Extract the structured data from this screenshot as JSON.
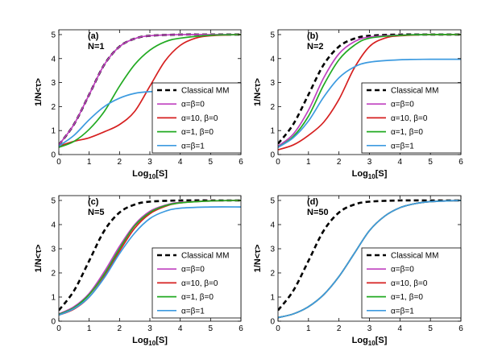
{
  "chart_data": [
    {
      "type": "line",
      "panel_label": "(a)",
      "n_label": "N=1",
      "xlabel_main": "Log",
      "xlabel_sub": "10",
      "xlabel_tail": "[S]",
      "ylabel": "1/N<τ>",
      "xlim": [
        0,
        6
      ],
      "ylim": [
        0,
        5.2
      ],
      "xticks": [
        "0",
        "1",
        "2",
        "3",
        "4",
        "5",
        "6"
      ],
      "yticks": [
        "0",
        "1",
        "2",
        "3",
        "4",
        "5"
      ],
      "series": [
        {
          "name": "Classical MM",
          "color": "#000000",
          "dash": true,
          "x": [
            0,
            0.5,
            1,
            1.5,
            2,
            2.5,
            3,
            4,
            5,
            6
          ],
          "y": [
            0.4,
            1.26,
            2.5,
            3.75,
            4.5,
            4.83,
            4.95,
            5.0,
            5.0,
            5.0
          ]
        },
        {
          "name": "α=β=0",
          "color": "#bf40bf",
          "dash": false,
          "x": [
            0,
            0.5,
            1,
            1.5,
            2,
            2.5,
            3,
            4,
            5,
            6
          ],
          "y": [
            0.4,
            1.26,
            2.5,
            3.75,
            4.5,
            4.83,
            4.95,
            5.0,
            5.0,
            5.0
          ]
        },
        {
          "name": "α=10, β=0",
          "color": "#d62020",
          "dash": false,
          "x": [
            0,
            0.5,
            1,
            1.5,
            2,
            2.5,
            3,
            3.5,
            4,
            4.5,
            5,
            6
          ],
          "y": [
            0.35,
            0.55,
            0.7,
            0.95,
            1.25,
            1.8,
            2.85,
            3.9,
            4.55,
            4.85,
            4.95,
            5.0
          ]
        },
        {
          "name": "α=1, β=0",
          "color": "#22aa22",
          "dash": false,
          "x": [
            0,
            0.5,
            1,
            1.5,
            2,
            2.5,
            3,
            3.5,
            4,
            5,
            6
          ],
          "y": [
            0.3,
            0.55,
            1.05,
            1.8,
            2.85,
            3.75,
            4.35,
            4.7,
            4.85,
            4.97,
            5.0
          ]
        },
        {
          "name": "α=β=1",
          "color": "#3d9be0",
          "dash": false,
          "x": [
            0,
            0.5,
            1,
            1.5,
            2,
            2.5,
            3,
            4,
            5,
            6
          ],
          "y": [
            0.35,
            0.8,
            1.45,
            2.0,
            2.35,
            2.55,
            2.62,
            2.65,
            2.65,
            2.65
          ]
        }
      ]
    },
    {
      "type": "line",
      "panel_label": "(b)",
      "n_label": "N=2",
      "xlabel_main": "Log",
      "xlabel_sub": "10",
      "xlabel_tail": "[S]",
      "ylabel": "1/N<τ>",
      "xlim": [
        0,
        6
      ],
      "ylim": [
        0,
        5.2
      ],
      "xticks": [
        "0",
        "1",
        "2",
        "3",
        "4",
        "5",
        "6"
      ],
      "yticks": [
        "0",
        "1",
        "2",
        "3",
        "4",
        "5"
      ],
      "series": [
        {
          "name": "Classical MM",
          "color": "#000000",
          "dash": true,
          "x": [
            0,
            0.5,
            1,
            1.5,
            2,
            2.5,
            3,
            4,
            5,
            6
          ],
          "y": [
            0.45,
            1.26,
            2.5,
            3.75,
            4.5,
            4.83,
            4.95,
            5.0,
            5.0,
            5.0
          ]
        },
        {
          "name": "α=β=0",
          "color": "#bf40bf",
          "dash": false,
          "x": [
            0,
            0.5,
            1,
            1.5,
            2,
            2.5,
            3,
            4,
            5,
            6
          ],
          "y": [
            0.35,
            0.85,
            1.85,
            3.2,
            4.2,
            4.7,
            4.9,
            4.98,
            5.0,
            5.0
          ]
        },
        {
          "name": "α=10, β=0",
          "color": "#d62020",
          "dash": false,
          "x": [
            0,
            0.5,
            1,
            1.5,
            2,
            2.5,
            3,
            3.5,
            4,
            5,
            6
          ],
          "y": [
            0.2,
            0.4,
            0.8,
            1.35,
            2.3,
            3.6,
            4.5,
            4.85,
            4.95,
            5.0,
            5.0
          ]
        },
        {
          "name": "α=1, β=0",
          "color": "#22aa22",
          "dash": false,
          "x": [
            0,
            0.5,
            1,
            1.5,
            2,
            2.5,
            3,
            4,
            5,
            6
          ],
          "y": [
            0.3,
            0.75,
            1.6,
            2.9,
            3.95,
            4.55,
            4.85,
            4.97,
            5.0,
            5.0
          ]
        },
        {
          "name": "α=β=1",
          "color": "#3d9be0",
          "dash": false,
          "x": [
            0,
            0.5,
            1,
            1.5,
            2,
            2.5,
            3,
            4,
            5,
            6
          ],
          "y": [
            0.3,
            0.7,
            1.4,
            2.4,
            3.2,
            3.65,
            3.85,
            3.95,
            3.97,
            3.97
          ]
        }
      ]
    },
    {
      "type": "line",
      "panel_label": "(c)",
      "n_label": "N=5",
      "xlabel_main": "Log",
      "xlabel_sub": "10",
      "xlabel_tail": "[S]",
      "ylabel": "1/N<τ>",
      "xlim": [
        0,
        6
      ],
      "ylim": [
        0,
        5.2
      ],
      "xticks": [
        "0",
        "1",
        "2",
        "3",
        "4",
        "5",
        "6"
      ],
      "yticks": [
        "0",
        "1",
        "2",
        "3",
        "4",
        "5"
      ],
      "series": [
        {
          "name": "Classical MM",
          "color": "#000000",
          "dash": true,
          "x": [
            0,
            0.5,
            1,
            1.5,
            2,
            2.5,
            3,
            4,
            5,
            6
          ],
          "y": [
            0.45,
            1.26,
            2.5,
            3.75,
            4.5,
            4.83,
            4.95,
            5.0,
            5.0,
            5.0
          ]
        },
        {
          "name": "α=β=0",
          "color": "#bf40bf",
          "dash": false,
          "x": [
            0,
            0.5,
            1,
            1.5,
            2,
            2.5,
            3,
            3.5,
            4,
            5,
            6
          ],
          "y": [
            0.3,
            0.6,
            1.15,
            2.05,
            3.1,
            4.0,
            4.55,
            4.8,
            4.92,
            4.98,
            5.0
          ]
        },
        {
          "name": "α=10, β=0",
          "color": "#d62020",
          "dash": false,
          "x": [
            0,
            0.5,
            1,
            1.5,
            2,
            2.5,
            3,
            3.5,
            4,
            5,
            6
          ],
          "y": [
            0.25,
            0.5,
            1.0,
            1.85,
            2.9,
            3.85,
            4.45,
            4.75,
            4.9,
            4.98,
            5.0
          ]
        },
        {
          "name": "α=1, β=0",
          "color": "#22aa22",
          "dash": false,
          "x": [
            0,
            0.5,
            1,
            1.5,
            2,
            2.5,
            3,
            3.5,
            4,
            5,
            6
          ],
          "y": [
            0.28,
            0.56,
            1.1,
            1.95,
            3.0,
            3.95,
            4.5,
            4.78,
            4.9,
            4.98,
            5.0
          ]
        },
        {
          "name": "α=β=1",
          "color": "#3d9be0",
          "dash": false,
          "x": [
            0,
            0.5,
            1,
            1.5,
            2,
            2.5,
            3,
            3.5,
            4,
            5,
            6
          ],
          "y": [
            0.25,
            0.52,
            1.0,
            1.8,
            2.8,
            3.65,
            4.25,
            4.55,
            4.68,
            4.73,
            4.73
          ]
        }
      ]
    },
    {
      "type": "line",
      "panel_label": "(d)",
      "n_label": "N=50",
      "xlabel_main": "Log",
      "xlabel_sub": "10",
      "xlabel_tail": "[S]",
      "ylabel": "1/N<τ>",
      "xlim": [
        0,
        6
      ],
      "ylim": [
        0,
        5.2
      ],
      "xticks": [
        "0",
        "1",
        "2",
        "3",
        "4",
        "5",
        "6"
      ],
      "yticks": [
        "0",
        "1",
        "2",
        "3",
        "4",
        "5"
      ],
      "series": [
        {
          "name": "Classical MM",
          "color": "#000000",
          "dash": true,
          "x": [
            0,
            0.5,
            1,
            1.5,
            2,
            2.5,
            3,
            4,
            5,
            6
          ],
          "y": [
            0.45,
            1.26,
            2.5,
            3.75,
            4.5,
            4.83,
            4.95,
            5.0,
            5.0,
            5.0
          ]
        },
        {
          "name": "α=β=0",
          "color": "#bf40bf",
          "dash": false,
          "x": [
            0,
            0.5,
            1,
            1.5,
            2,
            2.5,
            3,
            3.5,
            4,
            4.5,
            5,
            6
          ],
          "y": [
            0.15,
            0.3,
            0.6,
            1.1,
            1.85,
            2.8,
            3.75,
            4.35,
            4.7,
            4.87,
            4.95,
            5.0
          ]
        },
        {
          "name": "α=10, β=0",
          "color": "#d62020",
          "dash": false,
          "x": [
            0,
            0.5,
            1,
            1.5,
            2,
            2.5,
            3,
            3.5,
            4,
            4.5,
            5,
            6
          ],
          "y": [
            0.15,
            0.3,
            0.6,
            1.1,
            1.85,
            2.8,
            3.75,
            4.35,
            4.7,
            4.87,
            4.95,
            5.0
          ]
        },
        {
          "name": "α=1, β=0",
          "color": "#22aa22",
          "dash": false,
          "x": [
            0,
            0.5,
            1,
            1.5,
            2,
            2.5,
            3,
            3.5,
            4,
            4.5,
            5,
            6
          ],
          "y": [
            0.15,
            0.3,
            0.6,
            1.1,
            1.85,
            2.8,
            3.75,
            4.35,
            4.7,
            4.87,
            4.95,
            5.0
          ]
        },
        {
          "name": "α=β=1",
          "color": "#3d9be0",
          "dash": false,
          "x": [
            0,
            0.5,
            1,
            1.5,
            2,
            2.5,
            3,
            3.5,
            4,
            4.5,
            5,
            6
          ],
          "y": [
            0.15,
            0.3,
            0.6,
            1.1,
            1.85,
            2.8,
            3.75,
            4.35,
            4.7,
            4.87,
            4.95,
            5.0
          ]
        }
      ]
    }
  ]
}
